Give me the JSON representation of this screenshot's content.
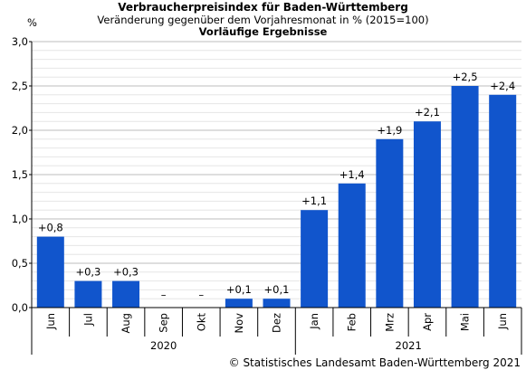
{
  "chart_data": {
    "type": "bar",
    "title": "Verbraucherpreisindex für Baden-Württemberg",
    "subtitle": "Veränderung gegenüber dem Vorjahresmonat in % (2015=100)",
    "subtitle2": "Vorläufige Ergebnisse",
    "ylabel": "%",
    "ylim": [
      0,
      3
    ],
    "yticks": [
      "0,0",
      "0,5",
      "1,0",
      "1,5",
      "2,0",
      "2,5",
      "3,0"
    ],
    "grid": true,
    "categories": [
      "Jun",
      "Jul",
      "Aug",
      "Sep",
      "Okt",
      "Nov",
      "Dez",
      "Jan",
      "Feb",
      "Mrz",
      "Apr",
      "Mai",
      "Jun"
    ],
    "values": [
      0.8,
      0.3,
      0.3,
      -0.05,
      -0.05,
      0.1,
      0.1,
      1.1,
      1.4,
      1.9,
      2.1,
      2.5,
      2.4
    ],
    "data_labels": [
      "+0,8",
      "+0,3",
      "+0,3",
      "–",
      "–",
      "+0,1",
      "+0,1",
      "+1,1",
      "+1,4",
      "+1,9",
      "+2,1",
      "+2,5",
      "+2,4"
    ],
    "groups": [
      {
        "label": "2020",
        "count": 7
      },
      {
        "label": "2021",
        "count": 6
      }
    ],
    "bar_color": "#1155cc"
  },
  "footer": {
    "copyright": "© Statistisches Landesamt Baden-Württemberg 2021"
  }
}
